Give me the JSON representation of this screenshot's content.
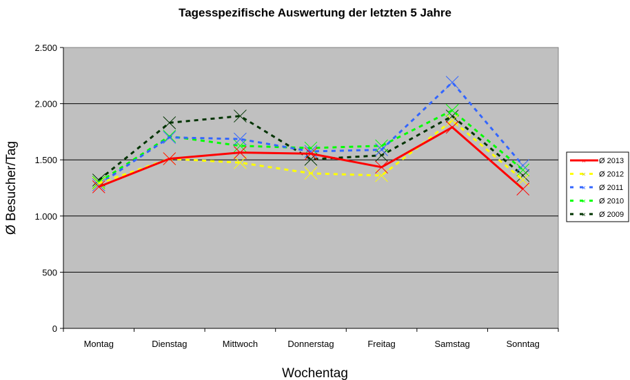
{
  "chart_data": {
    "type": "line",
    "title": "Tagesspezifische Auswertung der letzten 5 Jahre",
    "xlabel": "Wochentag",
    "ylabel": "Ø Besucher/Tag",
    "ylim": [
      0,
      2500
    ],
    "yticks": [
      0,
      500,
      1000,
      1500,
      2000,
      2500
    ],
    "ytick_labels": [
      "0",
      "500",
      "1.000",
      "1.500",
      "2.000",
      "2.500"
    ],
    "grid": true,
    "legend_position": "right",
    "categories": [
      "Montag",
      "Dienstag",
      "Mittwoch",
      "Donnerstag",
      "Freitag",
      "Samstag",
      "Sonntag"
    ],
    "series": [
      {
        "name": "Ø 2013",
        "color": "#ff0000",
        "style": "solid",
        "values": [
          1260,
          1510,
          1565,
          1555,
          1435,
          1790,
          1240
        ]
      },
      {
        "name": "Ø 2012",
        "color": "#ffff00",
        "style": "dashed",
        "values": [
          1290,
          1510,
          1475,
          1380,
          1360,
          1850,
          1320
        ]
      },
      {
        "name": "Ø 2011",
        "color": "#3366ff",
        "style": "dashed",
        "values": [
          1280,
          1700,
          1685,
          1575,
          1590,
          2190,
          1450
        ]
      },
      {
        "name": "Ø 2010",
        "color": "#00ff00",
        "style": "dashed",
        "values": [
          1300,
          1710,
          1625,
          1605,
          1625,
          1940,
          1410
        ]
      },
      {
        "name": "Ø 2009",
        "color": "#003300",
        "style": "dashed",
        "values": [
          1320,
          1830,
          1890,
          1505,
          1540,
          1890,
          1360
        ]
      }
    ]
  }
}
